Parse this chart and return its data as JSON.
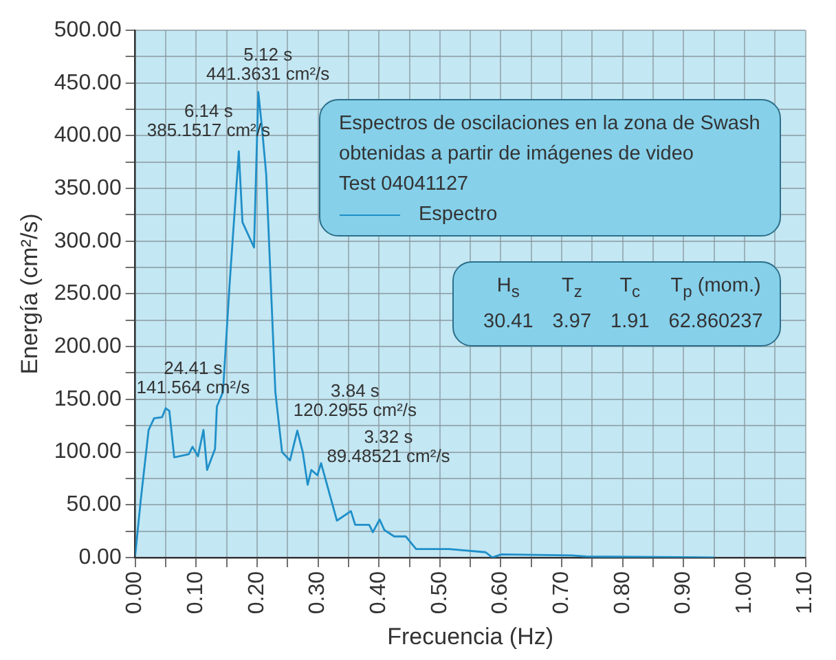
{
  "chart_data": {
    "type": "line",
    "xlabel": "Frecuencia (Hz)",
    "ylabel": "Energía (cm²/s)",
    "legend_title": "Espectros de oscilaciones en la zona de Swash\nobtenidas a partir de imágenes de video\nTest 04041127",
    "legend": "top",
    "grid": true,
    "marker": "none",
    "line_style": "solid",
    "xlim": [
      0,
      1.1
    ],
    "ylim": [
      0,
      500
    ],
    "xticks": [
      {
        "value": 0,
        "label": "0.00"
      },
      {
        "value": 0.05,
        "label": null
      },
      {
        "value": 0.1,
        "label": "0.10"
      },
      {
        "value": 0.15,
        "label": null
      },
      {
        "value": 0.2,
        "label": "0.20"
      },
      {
        "value": 0.25,
        "label": null
      },
      {
        "value": 0.3,
        "label": "0.30"
      },
      {
        "value": 0.35,
        "label": null
      },
      {
        "value": 0.4,
        "label": "0.40"
      },
      {
        "value": 0.45,
        "label": null
      },
      {
        "value": 0.5,
        "label": "0.50"
      },
      {
        "value": 0.55,
        "label": null
      },
      {
        "value": 0.6,
        "label": "0.60"
      },
      {
        "value": 0.65,
        "label": null
      },
      {
        "value": 0.7,
        "label": "0.70"
      },
      {
        "value": 0.75,
        "label": null
      },
      {
        "value": 0.8,
        "label": "0.80"
      },
      {
        "value": 0.85,
        "label": null
      },
      {
        "value": 0.9,
        "label": "0.90"
      },
      {
        "value": 0.95,
        "label": null
      },
      {
        "value": 1.0,
        "label": "1.00"
      },
      {
        "value": 1.05,
        "label": null
      },
      {
        "value": 1.1,
        "label": "1.10"
      }
    ],
    "yticks": [
      {
        "value": 0,
        "label": "0.00"
      },
      {
        "value": 25,
        "label": null
      },
      {
        "value": 50,
        "label": "50.00"
      },
      {
        "value": 75,
        "label": null
      },
      {
        "value": 100,
        "label": "100.00"
      },
      {
        "value": 125,
        "label": null
      },
      {
        "value": 150,
        "label": "150.00"
      },
      {
        "value": 175,
        "label": null
      },
      {
        "value": 200,
        "label": "200.00"
      },
      {
        "value": 225,
        "label": null
      },
      {
        "value": 250,
        "label": "250.00"
      },
      {
        "value": 275,
        "label": null
      },
      {
        "value": 300,
        "label": "300.00"
      },
      {
        "value": 325,
        "label": null
      },
      {
        "value": 350,
        "label": "350.00"
      },
      {
        "value": 375,
        "label": null
      },
      {
        "value": 400,
        "label": "400.00"
      },
      {
        "value": 425,
        "label": null
      },
      {
        "value": 450,
        "label": "450.00"
      },
      {
        "value": 475,
        "label": null
      },
      {
        "value": 500,
        "label": "500.00"
      }
    ],
    "series": [
      {
        "name": "Espectro",
        "color": "#1f8fc8",
        "x": [
          0,
          0.009,
          0.022,
          0.031,
          0.044,
          0.05,
          0.056,
          0.064,
          0.088,
          0.094,
          0.103,
          0.112,
          0.118,
          0.131,
          0.134,
          0.144,
          0.155,
          0.17,
          0.176,
          0.195,
          0.202,
          0.208,
          0.215,
          0.23,
          0.241,
          0.254,
          0.266,
          0.275,
          0.283,
          0.289,
          0.299,
          0.305,
          0.331,
          0.354,
          0.361,
          0.384,
          0.39,
          0.401,
          0.409,
          0.425,
          0.444,
          0.461,
          0.515,
          0.575,
          0.586,
          0.601,
          0.717,
          0.74,
          0.95
        ],
        "values": [
          2,
          54,
          121,
          132,
          133,
          141.564,
          139,
          95,
          98,
          105,
          96,
          121,
          83,
          103,
          143,
          157,
          260,
          385.1517,
          318,
          294,
          441.3631,
          408,
          363,
          157,
          100,
          92,
          120.2955,
          100,
          69,
          83,
          78,
          89.48521,
          35,
          44,
          31,
          31,
          24,
          36,
          26,
          20,
          20,
          8,
          8,
          5,
          0,
          3,
          2,
          1,
          0
        ]
      }
    ],
    "annotations": [
      {
        "text": "5.12 s\n441.3631 cm²/s",
        "x": 0.202,
        "y": 441.3631
      },
      {
        "text": "6.14 s\n385.1517 cm²/s",
        "x": 0.17,
        "y": 385.1517
      },
      {
        "text": "24.41 s\n141.564 cm²/s",
        "x": 0.05,
        "y": 141.564
      },
      {
        "text": "3.84 s\n120.2955 cm²/s",
        "x": 0.266,
        "y": 120.2955
      },
      {
        "text": "3.32 s\n89.48521 cm²/s",
        "x": 0.305,
        "y": 89.48521
      },
      "H$_{s}$\tT$_{z}$\tT$_{c}$\tT$_{p}$ (mom.)",
      "30.41\t3.97\t1.91\t62.860237"
    ]
  }
}
